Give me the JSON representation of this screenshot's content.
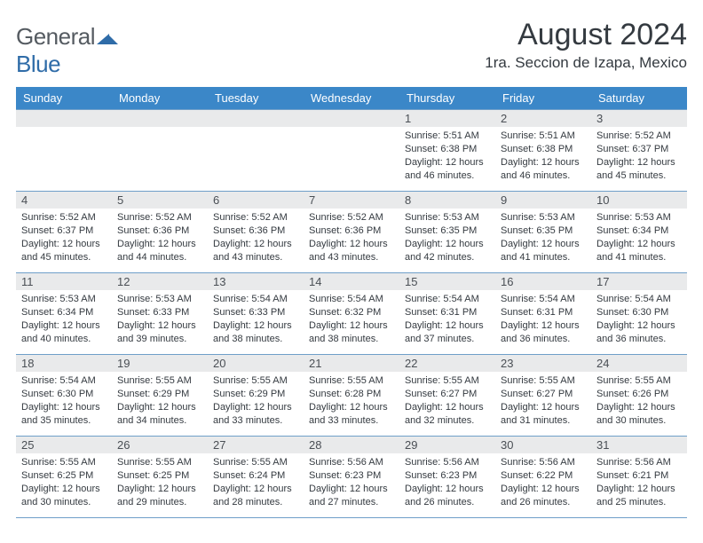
{
  "logo": {
    "text1": "General",
    "text2": "Blue"
  },
  "title": "August 2024",
  "location": "1ra. Seccion de Izapa, Mexico",
  "colors": {
    "header_bg": "#3b87c8",
    "header_text": "#ffffff",
    "row_border": "#6f9fc9",
    "daynum_bg": "#e9eaeb",
    "body_text": "#343a40",
    "logo_gray": "#555b61",
    "logo_blue": "#2f6ca8"
  },
  "typography": {
    "title_fontsize": 34,
    "location_fontsize": 17,
    "dayheader_fontsize": 13,
    "daynum_fontsize": 13,
    "celltext_fontsize": 11
  },
  "day_headers": [
    "Sunday",
    "Monday",
    "Tuesday",
    "Wednesday",
    "Thursday",
    "Friday",
    "Saturday"
  ],
  "weeks": [
    [
      {
        "n": "",
        "sr": "",
        "ss": "",
        "dl": ""
      },
      {
        "n": "",
        "sr": "",
        "ss": "",
        "dl": ""
      },
      {
        "n": "",
        "sr": "",
        "ss": "",
        "dl": ""
      },
      {
        "n": "",
        "sr": "",
        "ss": "",
        "dl": ""
      },
      {
        "n": "1",
        "sr": "Sunrise: 5:51 AM",
        "ss": "Sunset: 6:38 PM",
        "dl": "Daylight: 12 hours and 46 minutes."
      },
      {
        "n": "2",
        "sr": "Sunrise: 5:51 AM",
        "ss": "Sunset: 6:38 PM",
        "dl": "Daylight: 12 hours and 46 minutes."
      },
      {
        "n": "3",
        "sr": "Sunrise: 5:52 AM",
        "ss": "Sunset: 6:37 PM",
        "dl": "Daylight: 12 hours and 45 minutes."
      }
    ],
    [
      {
        "n": "4",
        "sr": "Sunrise: 5:52 AM",
        "ss": "Sunset: 6:37 PM",
        "dl": "Daylight: 12 hours and 45 minutes."
      },
      {
        "n": "5",
        "sr": "Sunrise: 5:52 AM",
        "ss": "Sunset: 6:36 PM",
        "dl": "Daylight: 12 hours and 44 minutes."
      },
      {
        "n": "6",
        "sr": "Sunrise: 5:52 AM",
        "ss": "Sunset: 6:36 PM",
        "dl": "Daylight: 12 hours and 43 minutes."
      },
      {
        "n": "7",
        "sr": "Sunrise: 5:52 AM",
        "ss": "Sunset: 6:36 PM",
        "dl": "Daylight: 12 hours and 43 minutes."
      },
      {
        "n": "8",
        "sr": "Sunrise: 5:53 AM",
        "ss": "Sunset: 6:35 PM",
        "dl": "Daylight: 12 hours and 42 minutes."
      },
      {
        "n": "9",
        "sr": "Sunrise: 5:53 AM",
        "ss": "Sunset: 6:35 PM",
        "dl": "Daylight: 12 hours and 41 minutes."
      },
      {
        "n": "10",
        "sr": "Sunrise: 5:53 AM",
        "ss": "Sunset: 6:34 PM",
        "dl": "Daylight: 12 hours and 41 minutes."
      }
    ],
    [
      {
        "n": "11",
        "sr": "Sunrise: 5:53 AM",
        "ss": "Sunset: 6:34 PM",
        "dl": "Daylight: 12 hours and 40 minutes."
      },
      {
        "n": "12",
        "sr": "Sunrise: 5:53 AM",
        "ss": "Sunset: 6:33 PM",
        "dl": "Daylight: 12 hours and 39 minutes."
      },
      {
        "n": "13",
        "sr": "Sunrise: 5:54 AM",
        "ss": "Sunset: 6:33 PM",
        "dl": "Daylight: 12 hours and 38 minutes."
      },
      {
        "n": "14",
        "sr": "Sunrise: 5:54 AM",
        "ss": "Sunset: 6:32 PM",
        "dl": "Daylight: 12 hours and 38 minutes."
      },
      {
        "n": "15",
        "sr": "Sunrise: 5:54 AM",
        "ss": "Sunset: 6:31 PM",
        "dl": "Daylight: 12 hours and 37 minutes."
      },
      {
        "n": "16",
        "sr": "Sunrise: 5:54 AM",
        "ss": "Sunset: 6:31 PM",
        "dl": "Daylight: 12 hours and 36 minutes."
      },
      {
        "n": "17",
        "sr": "Sunrise: 5:54 AM",
        "ss": "Sunset: 6:30 PM",
        "dl": "Daylight: 12 hours and 36 minutes."
      }
    ],
    [
      {
        "n": "18",
        "sr": "Sunrise: 5:54 AM",
        "ss": "Sunset: 6:30 PM",
        "dl": "Daylight: 12 hours and 35 minutes."
      },
      {
        "n": "19",
        "sr": "Sunrise: 5:55 AM",
        "ss": "Sunset: 6:29 PM",
        "dl": "Daylight: 12 hours and 34 minutes."
      },
      {
        "n": "20",
        "sr": "Sunrise: 5:55 AM",
        "ss": "Sunset: 6:29 PM",
        "dl": "Daylight: 12 hours and 33 minutes."
      },
      {
        "n": "21",
        "sr": "Sunrise: 5:55 AM",
        "ss": "Sunset: 6:28 PM",
        "dl": "Daylight: 12 hours and 33 minutes."
      },
      {
        "n": "22",
        "sr": "Sunrise: 5:55 AM",
        "ss": "Sunset: 6:27 PM",
        "dl": "Daylight: 12 hours and 32 minutes."
      },
      {
        "n": "23",
        "sr": "Sunrise: 5:55 AM",
        "ss": "Sunset: 6:27 PM",
        "dl": "Daylight: 12 hours and 31 minutes."
      },
      {
        "n": "24",
        "sr": "Sunrise: 5:55 AM",
        "ss": "Sunset: 6:26 PM",
        "dl": "Daylight: 12 hours and 30 minutes."
      }
    ],
    [
      {
        "n": "25",
        "sr": "Sunrise: 5:55 AM",
        "ss": "Sunset: 6:25 PM",
        "dl": "Daylight: 12 hours and 30 minutes."
      },
      {
        "n": "26",
        "sr": "Sunrise: 5:55 AM",
        "ss": "Sunset: 6:25 PM",
        "dl": "Daylight: 12 hours and 29 minutes."
      },
      {
        "n": "27",
        "sr": "Sunrise: 5:55 AM",
        "ss": "Sunset: 6:24 PM",
        "dl": "Daylight: 12 hours and 28 minutes."
      },
      {
        "n": "28",
        "sr": "Sunrise: 5:56 AM",
        "ss": "Sunset: 6:23 PM",
        "dl": "Daylight: 12 hours and 27 minutes."
      },
      {
        "n": "29",
        "sr": "Sunrise: 5:56 AM",
        "ss": "Sunset: 6:23 PM",
        "dl": "Daylight: 12 hours and 26 minutes."
      },
      {
        "n": "30",
        "sr": "Sunrise: 5:56 AM",
        "ss": "Sunset: 6:22 PM",
        "dl": "Daylight: 12 hours and 26 minutes."
      },
      {
        "n": "31",
        "sr": "Sunrise: 5:56 AM",
        "ss": "Sunset: 6:21 PM",
        "dl": "Daylight: 12 hours and 25 minutes."
      }
    ]
  ]
}
